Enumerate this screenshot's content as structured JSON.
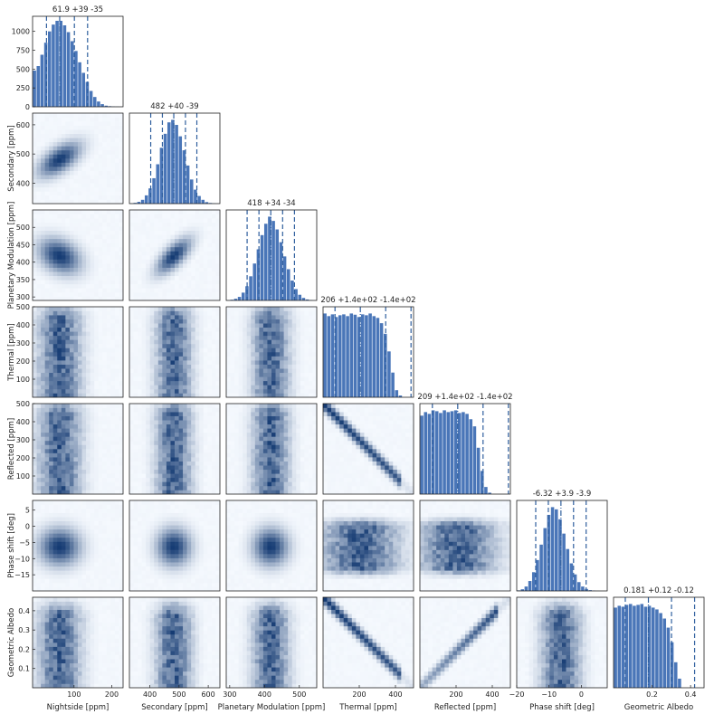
{
  "figure": {
    "background": "#ffffff"
  },
  "colors": {
    "bar": "#4a76b8",
    "quantile_line": "#2f5f9e",
    "density_low": "#f5f9fe",
    "density_high": "#08306b"
  },
  "chart_data": {
    "type": "corner",
    "params": [
      {
        "label": "Nightside [ppm]",
        "range": [
          -10,
          230
        ],
        "ticks": [
          100,
          200
        ],
        "tick_labels": [
          "100",
          "200"
        ],
        "title": "61.9 +39 -35",
        "median": 61.9,
        "q_low": 26.9,
        "q_high": 100.9,
        "hist_ylim": [
          0,
          1200
        ],
        "hist_yticks": [
          0,
          250,
          500,
          750,
          1000
        ],
        "hist_ytick_labels": [
          "0",
          "250",
          "500",
          "750",
          "1000"
        ]
      },
      {
        "label": "Secondary [ppm]",
        "range": [
          330,
          640
        ],
        "ticks": [
          400,
          500,
          600
        ],
        "tick_labels": [
          "400",
          "500",
          "600"
        ],
        "title": "482 +40 -39",
        "median": 482,
        "q_low": 443,
        "q_high": 522,
        "side_ticks": [
          400,
          500,
          600
        ],
        "side_tick_labels": [
          "400",
          "500",
          "600"
        ]
      },
      {
        "label": "Planetary Modulation [ppm]",
        "range": [
          290,
          550
        ],
        "ticks": [
          300,
          400,
          500
        ],
        "tick_labels": [
          "300",
          "400",
          "500"
        ],
        "title": "418 +34 -34",
        "median": 418,
        "q_low": 384,
        "q_high": 452,
        "side_ticks": [
          300,
          350,
          400,
          450,
          500
        ],
        "side_tick_labels": [
          "300",
          "350",
          "400",
          "450",
          "500"
        ]
      },
      {
        "label": "Thermal [ppm]",
        "range": [
          0,
          500
        ],
        "ticks": [
          200,
          400
        ],
        "tick_labels": [
          "200",
          "400"
        ],
        "title": "206 +1.4e+02 -1.4e+02",
        "median": 206,
        "q_low": 66,
        "q_high": 346,
        "side_ticks": [
          100,
          200,
          300,
          400,
          500
        ],
        "side_tick_labels": [
          "100",
          "200",
          "300",
          "400",
          "500"
        ]
      },
      {
        "label": "Reflected [ppm]",
        "range": [
          0,
          500
        ],
        "ticks": [
          200,
          400
        ],
        "tick_labels": [
          "200",
          "400"
        ],
        "title": "209 +1.4e+02 -1.4e+02",
        "median": 209,
        "q_low": 69,
        "q_high": 349,
        "side_ticks": [
          100,
          200,
          300,
          400,
          500
        ],
        "side_tick_labels": [
          "100",
          "200",
          "300",
          "400",
          "500"
        ]
      },
      {
        "label": "Phase shift [deg]",
        "range": [
          -20,
          8
        ],
        "ticks": [
          -20,
          -10,
          0
        ],
        "tick_labels": [
          "−20",
          "−10",
          "0"
        ],
        "title": "-6.32 +3.9 -3.9",
        "median": -6.32,
        "q_low": -10.22,
        "q_high": -2.42,
        "side_ticks": [
          -15,
          -10,
          -5,
          0,
          5
        ],
        "side_tick_labels": [
          "−15",
          "−10",
          "−5",
          "0",
          "5"
        ]
      },
      {
        "label": "Geometric Albedo",
        "range": [
          0,
          0.47
        ],
        "ticks": [
          0.2,
          0.4
        ],
        "tick_labels": [
          "0.2",
          "0.4"
        ],
        "title": "0.181 +0.12 -0.12",
        "median": 0.181,
        "q_low": 0.061,
        "q_high": 0.301,
        "side_ticks": [
          0.1,
          0.2,
          0.3,
          0.4
        ],
        "side_tick_labels": [
          "0.1",
          "0.2",
          "0.3",
          "0.4"
        ]
      }
    ],
    "quantile_lines": "2.5%, 16%, 50%, 84%, 97.5%",
    "histograms": [
      [
        480,
        540,
        690,
        850,
        1000,
        1090,
        1140,
        1140,
        1080,
        990,
        870,
        740,
        590,
        450,
        330,
        210,
        130,
        70,
        35,
        15,
        8,
        4,
        2,
        1
      ],
      [
        2,
        6,
        14,
        30,
        65,
        120,
        200,
        310,
        440,
        550,
        640,
        660,
        620,
        530,
        420,
        300,
        190,
        110,
        60,
        30,
        12,
        5,
        2,
        1
      ],
      [
        2,
        5,
        12,
        25,
        55,
        100,
        170,
        260,
        360,
        460,
        540,
        590,
        560,
        500,
        410,
        310,
        220,
        140,
        80,
        40,
        18,
        7,
        3,
        1
      ],
      [
        475,
        460,
        470,
        455,
        465,
        470,
        460,
        475,
        468,
        455,
        470,
        465,
        475,
        460,
        450,
        420,
        360,
        260,
        140,
        40,
        10,
        0,
        0,
        0
      ],
      [
        440,
        460,
        450,
        470,
        465,
        455,
        470,
        460,
        465,
        470,
        455,
        460,
        450,
        420,
        380,
        260,
        130,
        40,
        8,
        0,
        0,
        0,
        0,
        0
      ],
      [
        5,
        15,
        40,
        90,
        170,
        280,
        420,
        570,
        690,
        760,
        740,
        650,
        520,
        380,
        250,
        150,
        80,
        40,
        18,
        7,
        3,
        1,
        0,
        0
      ],
      [
        440,
        450,
        445,
        455,
        460,
        450,
        455,
        460,
        445,
        450,
        440,
        430,
        410,
        380,
        330,
        250,
        140,
        50,
        0,
        0,
        0,
        0,
        0,
        0
      ]
    ],
    "relations": {
      "1-0": {
        "type": "gauss",
        "rho": 0.6
      },
      "2-0": {
        "type": "gauss",
        "rho": -0.3
      },
      "2-1": {
        "type": "gauss",
        "rho": 0.7
      },
      "3-0": {
        "type": "flat"
      },
      "3-1": {
        "type": "flat"
      },
      "3-2": {
        "type": "flat"
      },
      "4-0": {
        "type": "flat"
      },
      "4-1": {
        "type": "flat"
      },
      "4-2": {
        "type": "flat"
      },
      "4-3": {
        "type": "line",
        "slope": -1
      },
      "5-0": {
        "type": "gauss",
        "rho": 0
      },
      "5-1": {
        "type": "gauss",
        "rho": 0
      },
      "5-2": {
        "type": "gauss",
        "rho": 0
      },
      "5-3": {
        "type": "flat"
      },
      "5-4": {
        "type": "flat"
      },
      "6-0": {
        "type": "flat"
      },
      "6-1": {
        "type": "flat"
      },
      "6-2": {
        "type": "flat"
      },
      "6-3": {
        "type": "line",
        "slope": -1
      },
      "6-4": {
        "type": "line",
        "slope": 1
      },
      "6-5": {
        "type": "flat"
      }
    }
  }
}
